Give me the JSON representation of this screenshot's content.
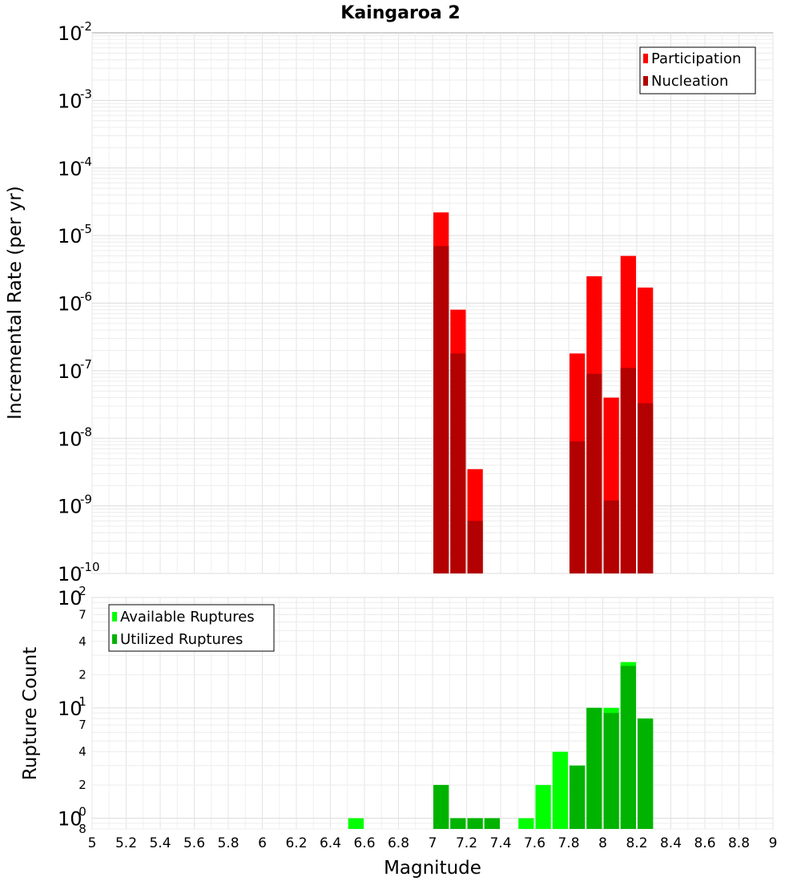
{
  "chart_data": [
    {
      "type": "bar",
      "title": "Kaingaroa 2",
      "xlabel": "",
      "ylabel": "Incremental Rate (per yr)",
      "yscale": "log",
      "xlim": [
        5,
        9
      ],
      "ylim": [
        1e-10,
        0.01
      ],
      "y_major_ticks": [
        {
          "base": "10",
          "exp": "-10"
        },
        {
          "base": "10",
          "exp": "-9"
        },
        {
          "base": "10",
          "exp": "-8"
        },
        {
          "base": "10",
          "exp": "-7"
        },
        {
          "base": "10",
          "exp": "-6"
        },
        {
          "base": "10",
          "exp": "-5"
        },
        {
          "base": "10",
          "exp": "-4"
        },
        {
          "base": "10",
          "exp": "-3"
        },
        {
          "base": "10",
          "exp": "-2"
        }
      ],
      "bar_width": 0.1,
      "legend_position": "top-right",
      "grid": true,
      "series": [
        {
          "name": "Participation",
          "color": "#ff0000",
          "x": [
            7.05,
            7.15,
            7.25,
            7.85,
            7.95,
            8.05,
            8.15,
            8.25
          ],
          "values": [
            2.2e-05,
            8e-07,
            3.5e-09,
            1.8e-07,
            2.5e-06,
            4e-08,
            5e-06,
            1.7e-06
          ]
        },
        {
          "name": "Nucleation",
          "color": "#b30000",
          "x": [
            7.05,
            7.15,
            7.25,
            7.85,
            7.95,
            8.05,
            8.15,
            8.25
          ],
          "values": [
            7e-06,
            1.8e-07,
            6e-10,
            9e-09,
            9e-08,
            1.2e-09,
            1.1e-07,
            3.3e-08
          ]
        }
      ]
    },
    {
      "type": "bar",
      "title": "",
      "xlabel": "Magnitude",
      "ylabel": "Rupture Count",
      "yscale": "log",
      "xlim": [
        5,
        9
      ],
      "ylim": [
        0.8,
        100
      ],
      "x_ticks": [
        "5",
        "5.2",
        "5.4",
        "5.6",
        "5.8",
        "6",
        "6.2",
        "6.4",
        "6.6",
        "6.8",
        "7",
        "7.2",
        "7.4",
        "7.6",
        "7.8",
        "8",
        "8.2",
        "8.4",
        "8.6",
        "8.8",
        "9"
      ],
      "y_major_ticks": [
        {
          "base": "10",
          "exp": "0"
        },
        {
          "base": "10",
          "exp": "1"
        },
        {
          "base": "10",
          "exp": "2"
        }
      ],
      "y_minor_ticks": [
        {
          "label": "8",
          "value": 0.8
        },
        {
          "label": "2",
          "value": 2
        },
        {
          "label": "4",
          "value": 4
        },
        {
          "label": "7",
          "value": 7
        },
        {
          "label": "2",
          "value": 20
        },
        {
          "label": "4",
          "value": 40
        },
        {
          "label": "7",
          "value": 70
        }
      ],
      "bar_width": 0.1,
      "legend_position": "top-left",
      "grid": true,
      "series": [
        {
          "name": "Available Ruptures",
          "color": "#00ff00",
          "x": [
            6.55,
            7.05,
            7.15,
            7.25,
            7.35,
            7.55,
            7.65,
            7.75,
            7.85,
            7.95,
            8.05,
            8.15,
            8.25
          ],
          "values": [
            1,
            2,
            1,
            1,
            1,
            1,
            2,
            4,
            3,
            10,
            10,
            26,
            8
          ]
        },
        {
          "name": "Utilized Ruptures",
          "color": "#00b300",
          "x": [
            7.05,
            7.15,
            7.25,
            7.35,
            7.85,
            7.95,
            8.05,
            8.15,
            8.25
          ],
          "values": [
            2,
            1,
            1,
            1,
            3,
            10,
            9,
            24,
            8
          ]
        }
      ]
    }
  ]
}
